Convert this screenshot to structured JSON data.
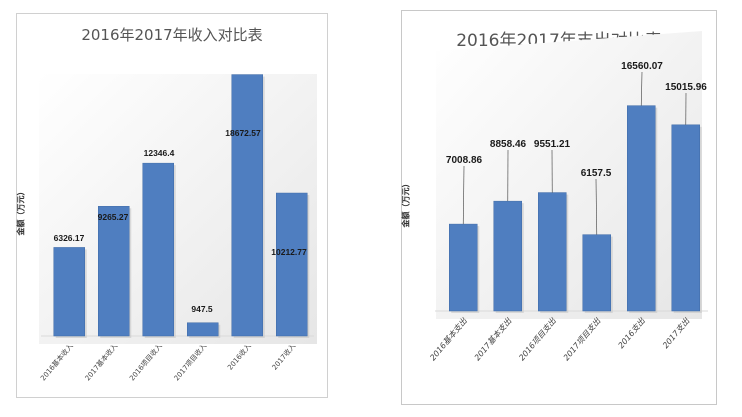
{
  "chart_data": [
    {
      "type": "bar",
      "title": "2016年2017年收入对比表",
      "ylabel": "金额（万元）",
      "categories": [
        "2016基本收入",
        "2017基本收入",
        "2016项目收入",
        "2017项目收入",
        "2016收入",
        "2017收入"
      ],
      "values": [
        6326.17,
        9265.27,
        12346.4,
        947.5,
        18672.57,
        10212.77
      ],
      "data_labels": [
        "6326.17",
        "9265.27",
        "12346.4",
        "947.5",
        "18672.57",
        "10212.77"
      ],
      "ylim": [
        0,
        20000
      ],
      "grid": false,
      "bar_color": "#4f7ec0"
    },
    {
      "type": "bar",
      "title": "2016年2017年支出对比表",
      "ylabel": "金额（万元）",
      "categories": [
        "2016基本支出",
        "2017基本支出",
        "2016项目支出",
        "2017项目支出",
        "2016支出",
        "2017支出"
      ],
      "values": [
        7008.86,
        8858.46,
        9551.21,
        6157.5,
        16560.07,
        15015.96
      ],
      "data_labels": [
        "7008.86",
        "8858.46",
        "9551.21",
        "6157.5",
        "16560.07",
        "15015.96"
      ],
      "ylim": [
        0,
        20000
      ],
      "grid": false,
      "bar_color": "#4f7ec0"
    }
  ]
}
